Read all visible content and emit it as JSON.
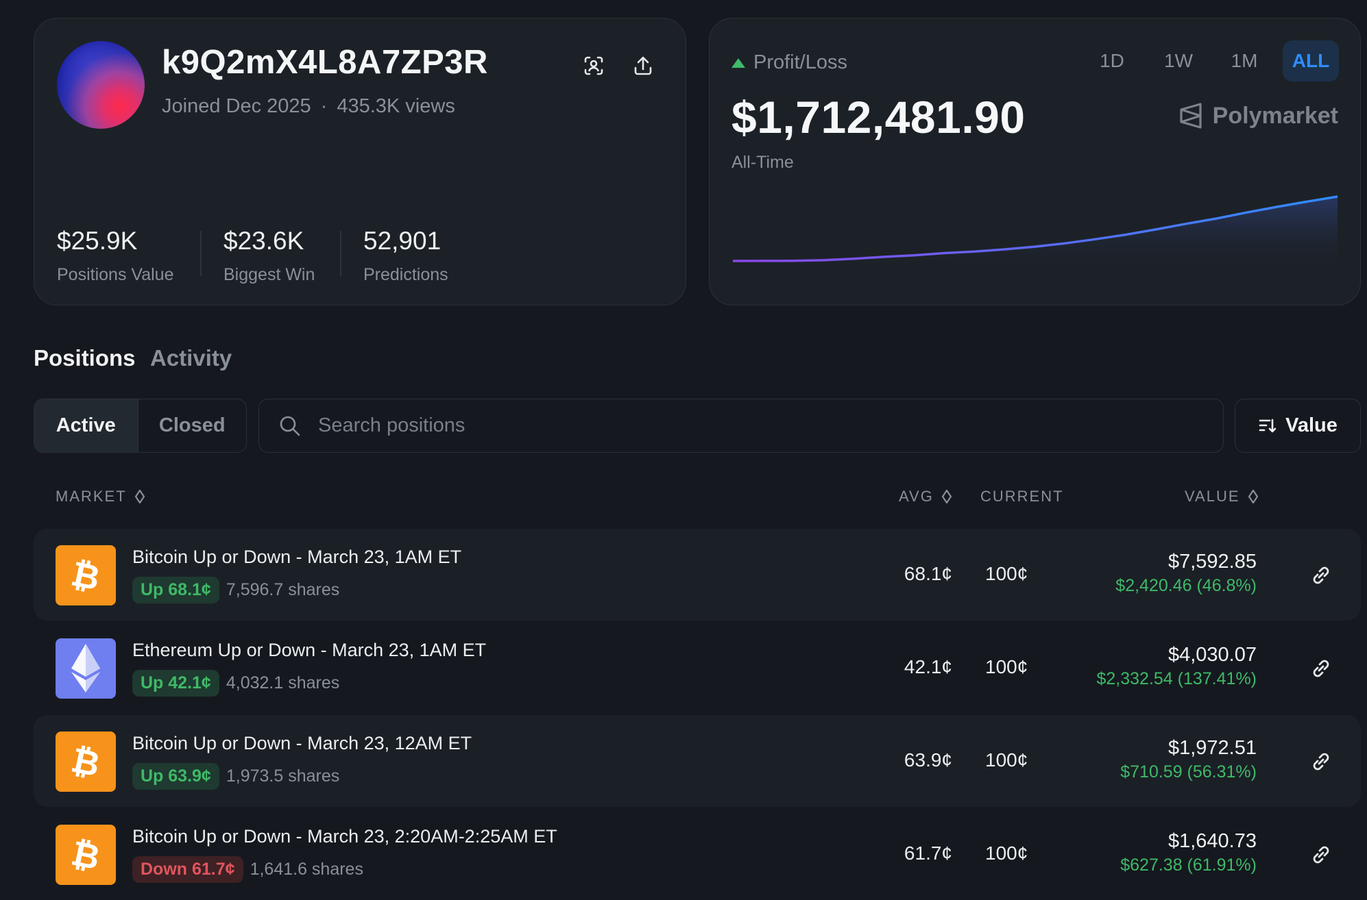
{
  "profile": {
    "username": "k9Q2mX4L8A7ZP3R",
    "joined": "Joined Dec 2025",
    "separator": "·",
    "views": "435.3K views",
    "stats": [
      {
        "value": "$25.9K",
        "label": "Positions Value"
      },
      {
        "value": "$23.6K",
        "label": "Biggest Win"
      },
      {
        "value": "52,901",
        "label": "Predictions"
      }
    ],
    "icons": [
      "scan-icon",
      "share-upload-icon"
    ]
  },
  "pnl": {
    "label": "Profit/Loss",
    "value": "$1,712,481.90",
    "period_label": "All-Time",
    "brand": "Polymarket",
    "ranges": [
      "1D",
      "1W",
      "1M",
      "ALL"
    ],
    "active_range": "ALL",
    "trend_color_start": "#8b46e6",
    "trend_color_end": "#2f8cff",
    "positive_color": "#3fb968"
  },
  "chart_data": {
    "type": "area",
    "title": "",
    "xlabel": "",
    "ylabel": "",
    "grid": false,
    "legend": "none",
    "ylim": [
      0,
      1712481.9
    ],
    "x": [
      0,
      5,
      10,
      15,
      20,
      25,
      30,
      35,
      40,
      45,
      50,
      55,
      60,
      65,
      70,
      75,
      80,
      85,
      90,
      95,
      100
    ],
    "values": [
      0,
      1000,
      3000,
      20000,
      60000,
      110000,
      150000,
      210000,
      250000,
      310000,
      380000,
      470000,
      580000,
      700000,
      840000,
      990000,
      1130000,
      1290000,
      1440000,
      1580000,
      1712481.9
    ]
  },
  "tabs": {
    "positions": "Positions",
    "activity": "Activity"
  },
  "filters": {
    "active": "Active",
    "closed": "Closed",
    "search_placeholder": "Search positions",
    "sort_label": "Value"
  },
  "table": {
    "headers": {
      "market": "MARKET",
      "avg": "AVG",
      "current": "CURRENT",
      "value": "VALUE"
    },
    "rows": [
      {
        "coin": "bitcoin",
        "title": "Bitcoin Up or Down - March 23, 1AM ET",
        "outcome": "Up 68.1¢",
        "outcome_type": "up",
        "shares": "7,596.7 shares",
        "avg": "68.1¢",
        "current": "100¢",
        "value": "$7,592.85",
        "pnl": "$2,420.46 (46.8%)"
      },
      {
        "coin": "ethereum",
        "title": "Ethereum Up or Down - March 23, 1AM ET",
        "outcome": "Up 42.1¢",
        "outcome_type": "up",
        "shares": "4,032.1 shares",
        "avg": "42.1¢",
        "current": "100¢",
        "value": "$4,030.07",
        "pnl": "$2,332.54 (137.41%)"
      },
      {
        "coin": "bitcoin",
        "title": "Bitcoin Up or Down - March 23, 12AM ET",
        "outcome": "Up 63.9¢",
        "outcome_type": "up",
        "shares": "1,973.5 shares",
        "avg": "63.9¢",
        "current": "100¢",
        "value": "$1,972.51",
        "pnl": "$710.59 (56.31%)"
      },
      {
        "coin": "bitcoin",
        "title": "Bitcoin Up or Down - March 23, 2:20AM-2:25AM ET",
        "outcome": "Down 61.7¢",
        "outcome_type": "down",
        "shares": "1,641.6 shares",
        "avg": "61.7¢",
        "current": "100¢",
        "value": "$1,640.73",
        "pnl": "$627.38 (61.91%)"
      }
    ]
  }
}
